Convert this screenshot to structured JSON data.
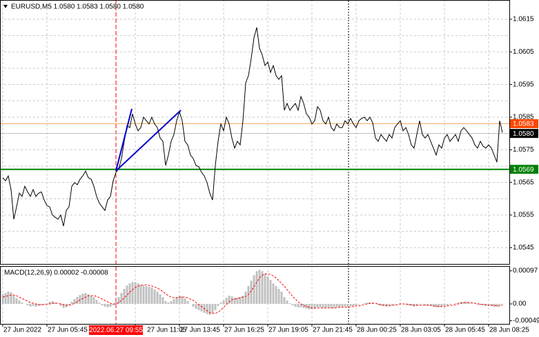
{
  "chart_data": {
    "type": "line",
    "title": "EURUSD,M5 1.0580 1.0583 1.0580 1.0580",
    "categories": [
      "27 Jun 2022",
      null,
      null,
      null,
      null,
      null,
      null,
      null,
      null,
      null,
      null,
      null,
      null,
      null,
      null,
      null,
      "27 Jun 05:45",
      null,
      null,
      null,
      null,
      null,
      null,
      null,
      null,
      null,
      null,
      null,
      null,
      null,
      null,
      null,
      null,
      null,
      null,
      null,
      null,
      null,
      null,
      null,
      null,
      "2022.06.27 09:55",
      null,
      null,
      null,
      null,
      null,
      null,
      "27 Jun 11:05",
      null,
      null,
      null,
      null,
      null,
      null,
      null,
      null,
      null,
      null,
      null,
      null,
      null,
      null,
      null,
      "27 Jun 13:45",
      null,
      null,
      null,
      null,
      null,
      null,
      null,
      null,
      null,
      null,
      null,
      null,
      null,
      null,
      null,
      "27 Jun 16:25",
      null,
      null,
      null,
      null,
      null,
      null,
      null,
      null,
      null,
      null,
      null,
      null,
      null,
      null,
      null,
      "27 Jun 19:05",
      null,
      null,
      null,
      null,
      null,
      null,
      null,
      null,
      null,
      null,
      null,
      null,
      null,
      null,
      null,
      "27 Jun 21:45",
      null,
      null,
      null,
      null,
      null,
      null,
      null,
      null,
      null,
      null,
      null,
      null,
      null,
      null,
      null,
      "28 Jun 00:25",
      null,
      null,
      null,
      null,
      null,
      null,
      null,
      null,
      null,
      null,
      null,
      null,
      null,
      null,
      null,
      "28 Jun 03:05",
      null,
      null,
      null,
      null,
      null,
      null,
      null,
      null,
      null,
      null,
      null,
      null,
      null,
      null,
      null,
      "28 Jun 05:45",
      null,
      null,
      null,
      null,
      null,
      null,
      null,
      null,
      null,
      null,
      null,
      null,
      null,
      null,
      null,
      "28 Jun 08:25",
      null,
      null,
      null,
      null,
      null
    ],
    "highlight_category": 41,
    "highlight_color": "#ff0000",
    "ylim": [
      1.054,
      1.06209
    ],
    "yticks": [
      1.0545,
      1.0555,
      1.0565,
      1.0575,
      1.0585,
      1.0595,
      1.0605,
      1.0615
    ],
    "minor_yticks": [
      1.055,
      1.056,
      1.057,
      1.058,
      1.059,
      1.06,
      1.061
    ],
    "grid": true,
    "series": [
      {
        "color": "#000000",
        "values": [
          1.05664,
          1.05655,
          1.0567,
          1.05628,
          1.05537,
          1.05575,
          1.05617,
          1.05607,
          1.05638,
          1.05621,
          1.05607,
          1.05628,
          1.05607,
          1.05617,
          1.05621,
          1.05596,
          1.05579,
          1.05575,
          1.0555,
          1.05543,
          1.05537,
          1.0555,
          1.05516,
          1.05564,
          1.05575,
          1.05638,
          1.05649,
          1.05643,
          1.0566,
          1.0567,
          1.05685,
          1.05664,
          1.0566,
          1.05638,
          1.05607,
          1.05586,
          1.05575,
          1.05564,
          1.05596,
          1.05607,
          1.05655,
          1.05681,
          1.05691,
          1.05723,
          1.05776,
          1.05824,
          1.05818,
          1.0586,
          1.05829,
          1.05808,
          1.05818,
          1.0585,
          1.05839,
          1.05829,
          1.0585,
          1.05829,
          1.05818,
          1.05786,
          1.05776,
          1.05702,
          1.05734,
          1.05776,
          1.05797,
          1.05839,
          1.05867,
          1.05839,
          1.05776,
          1.05765,
          1.05734,
          1.05723,
          1.05702,
          1.05698,
          1.05681,
          1.0567,
          1.05649,
          1.05617,
          1.05596,
          1.05702,
          1.05776,
          1.05829,
          1.05808,
          1.0585,
          1.05829,
          1.05786,
          1.05755,
          1.05776,
          1.05765,
          1.05839,
          1.05955,
          1.05977,
          1.0603,
          1.06093,
          1.06125,
          1.06061,
          1.0604,
          1.06008,
          1.06019,
          1.05987,
          1.06008,
          1.05977,
          1.05966,
          1.05977,
          1.05871,
          1.05892,
          1.05871,
          1.05882,
          1.05892,
          1.05871,
          1.05913,
          1.05892,
          1.0586,
          1.0585,
          1.05829,
          1.05839,
          1.05882,
          1.05871,
          1.05839,
          1.05829,
          1.0585,
          1.05818,
          1.05808,
          1.05829,
          1.05818,
          1.05818,
          1.05839,
          1.05829,
          1.05846,
          1.05829,
          1.05818,
          1.05839,
          1.05846,
          1.0585,
          1.05839,
          1.0585,
          1.05833,
          1.05786,
          1.05776,
          1.05797,
          1.05786,
          1.05776,
          1.05797,
          1.05786,
          1.05818,
          1.05829,
          1.05839,
          1.05808,
          1.05818,
          1.05797,
          1.05765,
          1.05755,
          1.05797,
          1.05839,
          1.05797,
          1.05786,
          1.05797,
          1.05776,
          1.05755,
          1.05734,
          1.05765,
          1.05755,
          1.05786,
          1.05797,
          1.05776,
          1.05786,
          1.05797,
          1.05776,
          1.05808,
          1.05818,
          1.05808,
          1.05797,
          1.05786,
          1.05765,
          1.05755,
          1.05776,
          1.05761,
          1.05755,
          1.05765,
          1.05755,
          1.05734,
          1.05712,
          1.05839,
          1.05803
        ]
      }
    ],
    "levels": [
      {
        "value": 1.0583,
        "line_color": "#f4a460",
        "tag_color": "#ff4500"
      },
      {
        "value": 1.058,
        "label": "1.0580",
        "line_color": "#c0c0c0",
        "tag_color": "#000000"
      },
      {
        "value": 1.0569,
        "line_color": "#008000",
        "tag_color": "#008000"
      }
    ],
    "indicator": {
      "type": "bar",
      "title": "MACD(12,26,9) 0.00002 -0.00008",
      "ylim": [
        -0.000586,
        0.00111
      ],
      "yticks": [
        {
          "value": 0.00097,
          "label": "0.00097"
        },
        {
          "value": 0,
          "label": "0.00"
        },
        {
          "value": -0.00049,
          "label": "-0.00049"
        }
      ],
      "series": [
        {
          "type": "bar",
          "color": "#c0c0c0",
          "values": [
            0.00028,
            0.00032,
            0.00036,
            0.00034,
            0.00024,
            0.00016,
            0.0001,
            4e-05,
            0,
            -4e-05,
            -8e-05,
            -6e-05,
            -8e-05,
            -6e-05,
            -4e-05,
            -2e-05,
            2e-05,
            6e-05,
            8e-05,
            4e-05,
            0,
            -6e-05,
            -0.00012,
            -0.0001,
            -4e-05,
            6e-05,
            0.00014,
            0.0002,
            0.00026,
            0.0003,
            0.00032,
            0.00028,
            0.00024,
            0.0002,
            0.00012,
            4e-05,
            -4e-05,
            -8e-05,
            -0.0001,
            -8e-05,
            -4e-05,
            8e-05,
            0.0002,
            0.00032,
            0.00044,
            0.00054,
            0.0006,
            0.00064,
            0.00064,
            0.0006,
            0.00056,
            0.00054,
            0.00052,
            0.0005,
            0.00048,
            0.00042,
            0.00036,
            0.00028,
            0.0002,
            8e-05,
            4e-05,
            8e-05,
            0.00014,
            0.0002,
            0.00024,
            0.00022,
            0.00016,
            8e-05,
            0,
            -8e-05,
            -0.00014,
            -0.00018,
            -0.00022,
            -0.00026,
            -0.0003,
            -0.00032,
            -0.00028,
            -0.00018,
            -6e-05,
            4e-05,
            0.0001,
            0.00018,
            0.00024,
            0.00022,
            0.00018,
            0.00018,
            0.0002,
            0.00024,
            0.00036,
            0.00052,
            0.00068,
            0.00084,
            0.00096,
            0.001,
            0.00096,
            0.00088,
            0.0008,
            0.0007,
            0.0006,
            0.00052,
            0.00044,
            0.00036,
            0.0002,
            0.0001,
            2e-05,
            -4e-05,
            -8e-05,
            -0.0001,
            -0.0001,
            -0.00012,
            -0.00014,
            -0.00016,
            -0.00016,
            -0.00014,
            -0.0001,
            -0.0001,
            -0.00012,
            -0.00012,
            -0.0001,
            -0.00012,
            -0.00012,
            -0.0001,
            -0.0001,
            -0.0001,
            -8e-05,
            -8e-05,
            -6e-05,
            -6e-05,
            -4e-05,
            -2e-05,
            0,
            2e-05,
            4e-05,
            4e-05,
            4e-05,
            0,
            -4e-05,
            -6e-05,
            -6e-05,
            -8e-05,
            -6e-05,
            -4e-05,
            -2e-05,
            0,
            2e-05,
            0,
            -2e-05,
            -4e-05,
            -6e-05,
            -8e-05,
            -6e-05,
            -2e-05,
            -2e-05,
            -4e-05,
            -4e-05,
            -6e-05,
            -8e-05,
            -0.0001,
            -0.0001,
            -8e-05,
            -6e-05,
            -4e-05,
            -2e-05,
            0,
            2e-05,
            4e-05,
            6e-05,
            6e-05,
            6e-05,
            4e-05,
            2e-05,
            0,
            -2e-05,
            -4e-05,
            -4e-05,
            -6e-05,
            -6e-05,
            -6e-05,
            -8e-05,
            -8e-05,
            -4e-05,
            -2e-05
          ]
        },
        {
          "type": "line",
          "color": "#ff0000",
          "dashed": true,
          "values": [
            0.0002,
            0.00022,
            0.00024,
            0.00026,
            0.00026,
            0.00024,
            0.0002,
            0.00016,
            0.00012,
            8e-05,
            4e-05,
            2e-05,
            0,
            -2e-05,
            -2e-05,
            -2e-05,
            -2e-05,
            0,
            2e-05,
            2e-05,
            2e-05,
            0,
            -2e-05,
            -4e-05,
            -4e-05,
            -2e-05,
            2e-05,
            6e-05,
            0.00012,
            0.00016,
            0.0002,
            0.00024,
            0.00024,
            0.00024,
            0.00022,
            0.00018,
            0.00014,
            0.0001,
            6e-05,
            2e-05,
            0,
            0,
            4e-05,
            0.0001,
            0.00018,
            0.00026,
            0.00034,
            0.00042,
            0.00048,
            0.00052,
            0.00054,
            0.00056,
            0.00056,
            0.00054,
            0.00052,
            0.0005,
            0.00046,
            0.00042,
            0.00036,
            0.0003,
            0.00024,
            0.0002,
            0.00018,
            0.00018,
            0.0002,
            0.0002,
            0.0002,
            0.00018,
            0.00014,
            0.0001,
            4e-05,
            -2e-05,
            -8e-05,
            -0.00014,
            -0.0002,
            -0.00026,
            -0.00028,
            -0.00028,
            -0.00024,
            -0.00018,
            -0.0001,
            -2e-05,
            6e-05,
            0.00012,
            0.00014,
            0.00016,
            0.00018,
            0.0002,
            0.00022,
            0.00028,
            0.00038,
            0.0005,
            0.00064,
            0.00076,
            0.00084,
            0.00088,
            0.00088,
            0.00086,
            0.00082,
            0.00076,
            0.00068,
            0.0006,
            0.00052,
            0.00042,
            0.00032,
            0.00022,
            0.00014,
            6e-05,
            0,
            -4e-05,
            -8e-05,
            -0.0001,
            -0.00012,
            -0.00012,
            -0.00012,
            -0.00012,
            -0.00012,
            -0.00012,
            -0.00012,
            -0.00012,
            -0.00012,
            -0.00012,
            -0.0001,
            -0.0001,
            -0.0001,
            -0.0001,
            -8e-05,
            -8e-05,
            -6e-05,
            -6e-05,
            -4e-05,
            -2e-05,
            0,
            2e-05,
            2e-05,
            2e-05,
            0,
            -2e-05,
            -4e-05,
            -4e-05,
            -6e-05,
            -4e-05,
            -4e-05,
            -2e-05,
            0,
            0,
            0,
            -2e-05,
            -2e-05,
            -4e-05,
            -4e-05,
            -4e-05,
            -4e-05,
            -4e-05,
            -4e-05,
            -4e-05,
            -6e-05,
            -6e-05,
            -8e-05,
            -8e-05,
            -8e-05,
            -6e-05,
            -4e-05,
            -4e-05,
            -2e-05,
            0,
            2e-05,
            4e-05,
            4e-05,
            4e-05,
            4e-05,
            2e-05,
            0,
            0,
            -2e-05,
            -2e-05,
            -4e-05,
            -4e-05,
            -4e-05,
            -6e-05,
            -6e-05,
            -4e-05
          ]
        }
      ]
    }
  }
}
